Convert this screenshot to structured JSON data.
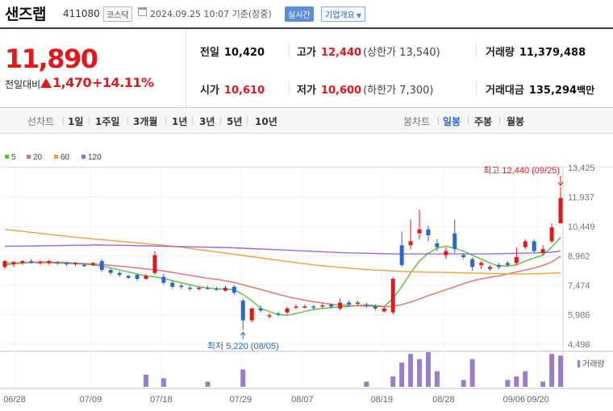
{
  "header": {
    "name": "샌즈랩",
    "code": "411080",
    "market": "코스닥",
    "datetime": "2024.09.25 10:07 기준(장중)",
    "realtime": "실시간",
    "company_info": "기업개요"
  },
  "price": {
    "current": "11,890",
    "change_label": "전일대비",
    "change": "1,470",
    "change_pct": "+14.11%"
  },
  "stats": {
    "prev_close": {
      "label": "전일",
      "value": "10,420"
    },
    "high": {
      "label": "고가",
      "value": "12,440",
      "limit": "(상한가 13,540)"
    },
    "volume": {
      "label": "거래량",
      "value": "11,379,488"
    },
    "open": {
      "label": "시가",
      "value": "10,610"
    },
    "low": {
      "label": "저가",
      "value": "10,600",
      "limit": "(하한가 7,300)"
    },
    "amount": {
      "label": "거래대금",
      "value": "135,294",
      "unit": "백만"
    }
  },
  "period": {
    "line_label": "선차트",
    "line_items": [
      "1일",
      "1주일",
      "3개월",
      "1년",
      "3년",
      "5년",
      "10년"
    ],
    "candle_label": "봉차트",
    "candle_items": [
      "일봉",
      "주봉",
      "월봉"
    ],
    "active": "일봉"
  },
  "colors": {
    "up": "#e0191d",
    "down": "#2d67c9",
    "ma5": "#5cbf3a",
    "ma20": "#e86f6f",
    "ma60": "#f0a040",
    "ma120": "#9a6ad6",
    "volume": "#9b7ec9"
  },
  "chart_data": {
    "type": "candlestick",
    "legend": [
      {
        "label": "5",
        "color": "#5cbf3a"
      },
      {
        "label": "20",
        "color": "#e86f6f"
      },
      {
        "label": "60",
        "color": "#f0a040"
      },
      {
        "label": "120",
        "color": "#9a6ad6"
      }
    ],
    "y_ticks": [
      "13,425",
      "11,937",
      "10,449",
      "8,962",
      "7,474",
      "5,986",
      "4,498"
    ],
    "ylim": [
      4498,
      13425
    ],
    "x_ticks": [
      "06/28",
      "07/09",
      "07/18",
      "07/29",
      "08/07",
      "08/19",
      "08/28",
      "09/06",
      "09/20"
    ],
    "high_annotation": "최고 12,440 (09/25)",
    "low_annotation": "최저 5,220 (08/05)",
    "volume_label": "거래량",
    "candles": [
      [
        8400,
        8700,
        8300,
        8750
      ],
      [
        8550,
        8650,
        8400,
        8700
      ],
      [
        8600,
        8700,
        8500,
        8750
      ],
      [
        8700,
        8650,
        8550,
        8800
      ],
      [
        8600,
        8650,
        8500,
        8750
      ],
      [
        8600,
        8700,
        8500,
        8750
      ],
      [
        8650,
        8600,
        8500,
        8700
      ],
      [
        8600,
        8550,
        8450,
        8650
      ],
      [
        8550,
        8600,
        8450,
        8650
      ],
      [
        8500,
        8450,
        8400,
        8550
      ],
      [
        8500,
        8600,
        8450,
        8650
      ],
      [
        8700,
        8250,
        8150,
        8800
      ],
      [
        8250,
        8100,
        8000,
        8350
      ],
      [
        8100,
        8000,
        7900,
        8200
      ],
      [
        7950,
        7850,
        7800,
        8000
      ],
      [
        8000,
        7800,
        7700,
        8050
      ],
      [
        7800,
        7950,
        7750,
        8050
      ],
      [
        8100,
        9000,
        8000,
        9200
      ],
      [
        7900,
        7600,
        7500,
        8050
      ],
      [
        7600,
        7400,
        7300,
        7700
      ],
      [
        7450,
        7400,
        7300,
        7550
      ],
      [
        7350,
        7300,
        7200,
        7450
      ],
      [
        7300,
        7350,
        7200,
        7400
      ],
      [
        7350,
        7300,
        7250,
        7450
      ],
      [
        7300,
        7250,
        7200,
        7400
      ],
      [
        7200,
        7350,
        7150,
        7450
      ],
      [
        7400,
        7100,
        7000,
        7500
      ],
      [
        6700,
        5700,
        5220,
        6800
      ],
      [
        5700,
        6300,
        5600,
        6350
      ],
      [
        6300,
        6200,
        6100,
        6450
      ],
      [
        5900,
        5950,
        5800,
        6050
      ],
      [
        6050,
        6000,
        5900,
        6150
      ],
      [
        6100,
        6300,
        6000,
        6400
      ],
      [
        6350,
        6400,
        6250,
        6500
      ],
      [
        6350,
        6400,
        6300,
        6500
      ],
      [
        6400,
        6350,
        6250,
        6500
      ],
      [
        6400,
        6450,
        6300,
        6550
      ],
      [
        6500,
        6400,
        6300,
        6550
      ],
      [
        6300,
        6600,
        6200,
        6800
      ],
      [
        6600,
        6500,
        6400,
        6700
      ],
      [
        6550,
        6600,
        6450,
        6700
      ],
      [
        6500,
        6450,
        6350,
        6600
      ],
      [
        6400,
        6300,
        6200,
        6500
      ],
      [
        6150,
        6300,
        6100,
        6400
      ],
      [
        6100,
        7800,
        6000,
        7900
      ],
      [
        9500,
        8500,
        8400,
        10200
      ],
      [
        9500,
        9700,
        9300,
        10800
      ],
      [
        10100,
        10300,
        9800,
        11300
      ],
      [
        10300,
        10000,
        9700,
        10500
      ],
      [
        9600,
        9400,
        9200,
        9800
      ],
      [
        9000,
        9200,
        8800,
        9400
      ],
      [
        10100,
        9300,
        9100,
        10800
      ],
      [
        9000,
        8900,
        8800,
        9100
      ],
      [
        8800,
        8400,
        8200,
        8900
      ],
      [
        8500,
        8600,
        8300,
        8700
      ],
      [
        8300,
        8400,
        8200,
        8500
      ],
      [
        8500,
        8400,
        8300,
        8600
      ],
      [
        8600,
        8500,
        8400,
        8700
      ],
      [
        8600,
        8900,
        8500,
        9400
      ],
      [
        9400,
        9700,
        9300,
        9800
      ],
      [
        9700,
        9200,
        9100,
        9800
      ],
      [
        9100,
        9300,
        9000,
        9500
      ],
      [
        9700,
        10400,
        9600,
        10600
      ],
      [
        10610,
        11890,
        10600,
        12440
      ]
    ],
    "ma": {
      "ma5": [
        8500,
        8550,
        8600,
        8620,
        8620,
        8610,
        8600,
        8580,
        8560,
        8540,
        8500,
        8450,
        8350,
        8250,
        8150,
        8050,
        7950,
        7900,
        7820,
        7700,
        7600,
        7500,
        7400,
        7340,
        7300,
        7280,
        7250,
        7000,
        6700,
        6300,
        6150,
        6000,
        5950,
        6050,
        6150,
        6250,
        6300,
        6350,
        6380,
        6400,
        6450,
        6480,
        6450,
        6400,
        6800,
        7400,
        8100,
        8700,
        9100,
        9350,
        9450,
        9350,
        9200,
        9000,
        8800,
        8600,
        8450,
        8450,
        8500,
        8700,
        8850,
        9000,
        9400,
        9900
      ],
      "ma20": [
        8600,
        8600,
        8620,
        8640,
        8650,
        8650,
        8640,
        8630,
        8600,
        8580,
        8550,
        8520,
        8480,
        8440,
        8400,
        8350,
        8300,
        8250,
        8200,
        8120,
        8050,
        7980,
        7900,
        7830,
        7770,
        7700,
        7620,
        7500,
        7380,
        7260,
        7140,
        7020,
        6900,
        6800,
        6720,
        6640,
        6580,
        6520,
        6480,
        6450,
        6430,
        6420,
        6400,
        6390,
        6420,
        6500,
        6620,
        6780,
        6950,
        7100,
        7250,
        7400,
        7550,
        7700,
        7800,
        7880,
        7950,
        8050,
        8150,
        8250,
        8350,
        8480,
        8650,
        8950
      ],
      "ma60": [
        10300,
        10250,
        10200,
        10150,
        10100,
        10050,
        10000,
        9950,
        9900,
        9860,
        9820,
        9780,
        9740,
        9700,
        9660,
        9620,
        9580,
        9540,
        9500,
        9450,
        9400,
        9340,
        9280,
        9220,
        9160,
        9100,
        9040,
        8980,
        8920,
        8860,
        8800,
        8740,
        8680,
        8620,
        8560,
        8510,
        8460,
        8420,
        8380,
        8340,
        8300,
        8270,
        8240,
        8220,
        8200,
        8180,
        8160,
        8150,
        8140,
        8130,
        8120,
        8110,
        8100,
        8090,
        8080,
        8070,
        8060,
        8050,
        8050,
        8050,
        8060,
        8070,
        8080,
        8100
      ],
      "ma120": [
        9450,
        9450,
        9460,
        9460,
        9470,
        9480,
        9480,
        9490,
        9500,
        9500,
        9510,
        9510,
        9500,
        9500,
        9490,
        9480,
        9470,
        9460,
        9450,
        9440,
        9430,
        9420,
        9410,
        9400,
        9390,
        9380,
        9370,
        9350,
        9330,
        9310,
        9290,
        9270,
        9250,
        9230,
        9210,
        9190,
        9170,
        9150,
        9130,
        9110,
        9100,
        9090,
        9080,
        9070,
        9060,
        9060,
        9060,
        9060,
        9060,
        9060,
        9060,
        9060,
        9060,
        9060,
        9060,
        9060,
        9070,
        9080,
        9090,
        9100,
        9110,
        9130,
        9150,
        9200
      ]
    },
    "volume": [
      0,
      0,
      0,
      0,
      0,
      0,
      0,
      0,
      0,
      0,
      0,
      0,
      0,
      0,
      0,
      0,
      0.35,
      0,
      0.25,
      0,
      0,
      0,
      0,
      0.15,
      0,
      0,
      0,
      0.5,
      0,
      0,
      0,
      0,
      0,
      0,
      0,
      0,
      0,
      0,
      0,
      0,
      0,
      0.15,
      0,
      0,
      0.3,
      0.7,
      0.95,
      0.8,
      1.0,
      0.45,
      0,
      0,
      0.2,
      0.8,
      0,
      0,
      0,
      0.2,
      0.3,
      0.45,
      0,
      0.15,
      0.95,
      0.9
    ]
  }
}
